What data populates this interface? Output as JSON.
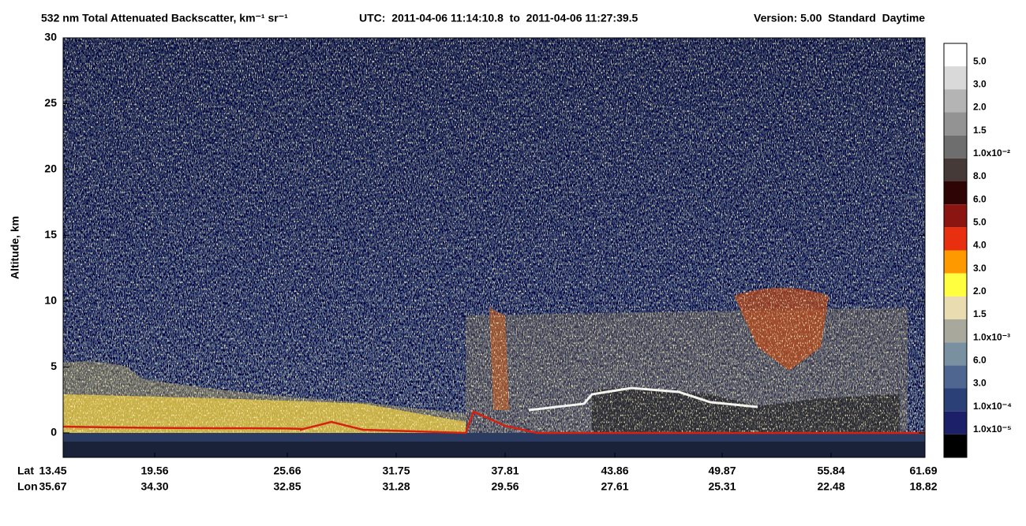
{
  "title": {
    "main": "532 nm Total Attenuated Backscatter, km⁻¹ sr⁻¹",
    "utc": "UTC:  2011-04-06 11:14:10.8  to  2011-04-06 11:27:39.5",
    "version": "Version: 5.00  Standard  Daytime"
  },
  "chart_data": {
    "type": "curtain",
    "y_label": "Altitude, km",
    "ylim": [
      -1.86,
      30
    ],
    "yticks": [
      0,
      5,
      10,
      15,
      20,
      25,
      30
    ],
    "x_row_labels": [
      "Lat",
      "Lon"
    ],
    "lat": [
      "13.45",
      "19.56",
      "25.66",
      "31.75",
      "37.81",
      "43.86",
      "49.87",
      "55.84",
      "61.69"
    ],
    "lon": [
      "35.67",
      "34.30",
      "32.85",
      "31.28",
      "29.56",
      "27.61",
      "25.31",
      "22.48",
      "18.82"
    ],
    "colorbar": {
      "colors": [
        "#ffffff",
        "#d9d9d9",
        "#b4b4b4",
        "#939393",
        "#6e6e6e",
        "#463a38",
        "#2e0404",
        "#8b1510",
        "#e83010",
        "#ff9900",
        "#ffff40",
        "#e8dcb0",
        "#a8a89c",
        "#7890a0",
        "#4e6690",
        "#2c4078",
        "#1c2068",
        "#000000"
      ],
      "labels": [
        "5.0",
        "3.0",
        "2.0",
        "1.5",
        "1.0x10⁻²",
        "8.0",
        "6.0",
        "5.0",
        "4.0",
        "3.0",
        "2.0",
        "1.5",
        "1.0x10⁻³",
        "6.0",
        "3.0",
        "1.0x10⁻⁴",
        "1.0x10⁻⁵"
      ]
    }
  }
}
